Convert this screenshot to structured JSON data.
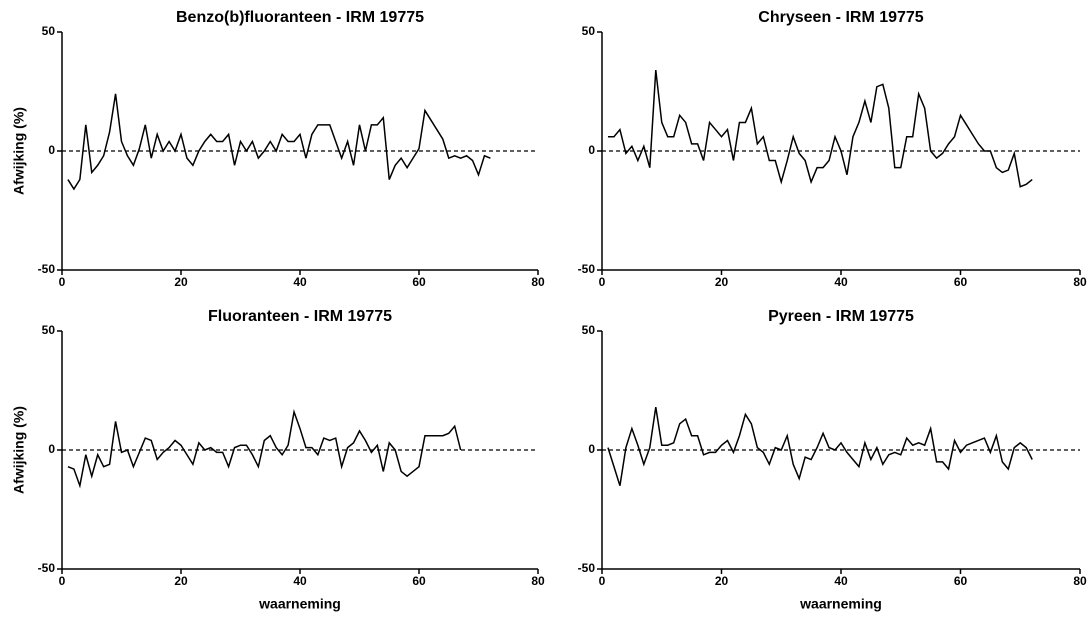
{
  "chart_data": [
    {
      "type": "line",
      "title": "Benzo(b)fluoranteen - IRM 19775",
      "ylabel": "Afwijking (%)",
      "x": [
        1,
        2,
        3,
        4,
        5,
        6,
        7,
        8,
        9,
        10,
        11,
        12,
        13,
        14,
        15,
        16,
        17,
        18,
        19,
        20,
        21,
        22,
        23,
        24,
        25,
        26,
        27,
        28,
        29,
        30,
        31,
        32,
        33,
        34,
        35,
        36,
        37,
        38,
        39,
        40,
        41,
        42,
        43,
        44,
        45,
        46,
        47,
        48,
        49,
        50,
        51,
        52,
        53,
        54,
        55,
        56,
        57,
        58,
        59,
        60,
        61,
        62,
        63,
        64,
        65,
        66,
        67,
        68,
        69,
        70,
        71,
        72
      ],
      "series": [
        {
          "color": "#000000",
          "values": [
            -12,
            -16,
            -12,
            11,
            -9,
            -6,
            -2,
            8,
            24,
            4,
            -2,
            -6,
            1,
            11,
            -3,
            7,
            0,
            4,
            0,
            7,
            -3,
            -6,
            0,
            4,
            7,
            4,
            4,
            7,
            -6,
            4,
            0,
            4,
            -3,
            0,
            4,
            0,
            7,
            4,
            4,
            7,
            -3,
            7,
            11,
            11,
            11,
            4,
            -3,
            4,
            -6,
            11,
            0,
            11,
            11,
            14,
            -12,
            -6,
            -3,
            -7,
            -3,
            1,
            17,
            13,
            9,
            5,
            -3,
            -2,
            -3,
            -2,
            -4,
            -10,
            -2,
            -3
          ]
        }
      ],
      "xlim": [
        0,
        80
      ],
      "ylim": [
        -50,
        50
      ],
      "xticks": [
        0,
        20,
        40,
        60,
        80
      ],
      "yticks": [
        -50,
        0,
        50
      ],
      "reference_line": 0
    },
    {
      "type": "line",
      "title": "Chryseen - IRM 19775",
      "x": [
        1,
        2,
        3,
        4,
        5,
        6,
        7,
        8,
        9,
        10,
        11,
        12,
        13,
        14,
        15,
        16,
        17,
        18,
        19,
        20,
        21,
        22,
        23,
        24,
        25,
        26,
        27,
        28,
        29,
        30,
        31,
        32,
        33,
        34,
        35,
        36,
        37,
        38,
        39,
        40,
        41,
        42,
        43,
        44,
        45,
        46,
        47,
        48,
        49,
        50,
        51,
        52,
        53,
        54,
        55,
        56,
        57,
        58,
        59,
        60,
        61,
        62,
        63,
        64,
        65,
        66,
        67,
        68,
        69,
        70,
        71,
        72
      ],
      "series": [
        {
          "color": "#000000",
          "values": [
            6,
            6,
            9,
            -1,
            2,
            -4,
            2,
            -7,
            34,
            12,
            6,
            6,
            15,
            12,
            3,
            3,
            -4,
            12,
            9,
            6,
            9,
            -4,
            12,
            12,
            18,
            3,
            6,
            -4,
            -4,
            -13,
            -4,
            6,
            -1,
            -4,
            -13,
            -7,
            -7,
            -4,
            6,
            0,
            -10,
            6,
            12,
            21,
            12,
            27,
            28,
            18,
            -7,
            -7,
            6,
            6,
            24,
            18,
            0,
            -3,
            -1,
            3,
            6,
            15,
            11,
            7,
            3,
            0,
            0,
            -7,
            -9,
            -8,
            -1,
            -15,
            -14,
            -12
          ]
        }
      ],
      "xlim": [
        0,
        80
      ],
      "ylim": [
        -50,
        50
      ],
      "xticks": [
        0,
        20,
        40,
        60,
        80
      ],
      "yticks": [
        -50,
        0,
        50
      ],
      "reference_line": 0
    },
    {
      "type": "line",
      "title": "Fluoranteen - IRM 19775",
      "ylabel": "Afwijking (%)",
      "xlabel": "waarneming",
      "x": [
        1,
        2,
        3,
        4,
        5,
        6,
        7,
        8,
        9,
        10,
        11,
        12,
        13,
        14,
        15,
        16,
        17,
        18,
        19,
        20,
        21,
        22,
        23,
        24,
        25,
        26,
        27,
        28,
        29,
        30,
        31,
        32,
        33,
        34,
        35,
        36,
        37,
        38,
        39,
        40,
        41,
        42,
        43,
        44,
        45,
        46,
        47,
        48,
        49,
        50,
        51,
        52,
        53,
        54,
        55,
        56,
        57,
        58,
        59,
        60,
        61,
        62,
        63,
        64,
        65,
        66,
        67
      ],
      "series": [
        {
          "color": "#000000",
          "values": [
            -7,
            -8,
            -15,
            -2,
            -11,
            -2,
            -7,
            -6,
            12,
            -1,
            0,
            -7,
            -1,
            5,
            4,
            -4,
            -1,
            1,
            4,
            2,
            -2,
            -6,
            3,
            0,
            1,
            -1,
            -1,
            -7,
            1,
            2,
            2,
            -2,
            -7,
            4,
            6,
            1,
            -2,
            2,
            16,
            9,
            1,
            1,
            -2,
            5,
            4,
            5,
            -7,
            1,
            3,
            8,
            4,
            -1,
            2,
            -9,
            3,
            0,
            -9,
            -11,
            -9,
            -7,
            6,
            6,
            6,
            6,
            7,
            10,
            0
          ]
        }
      ],
      "xlim": [
        0,
        80
      ],
      "ylim": [
        -50,
        50
      ],
      "xticks": [
        0,
        20,
        40,
        60,
        80
      ],
      "yticks": [
        -50,
        0,
        50
      ],
      "reference_line": 0
    },
    {
      "type": "line",
      "title": "Pyreen - IRM 19775",
      "xlabel": "waarneming",
      "x": [
        1,
        2,
        3,
        4,
        5,
        6,
        7,
        8,
        9,
        10,
        11,
        12,
        13,
        14,
        15,
        16,
        17,
        18,
        19,
        20,
        21,
        22,
        23,
        24,
        25,
        26,
        27,
        28,
        29,
        30,
        31,
        32,
        33,
        34,
        35,
        36,
        37,
        38,
        39,
        40,
        41,
        42,
        43,
        44,
        45,
        46,
        47,
        48,
        49,
        50,
        51,
        52,
        53,
        54,
        55,
        56,
        57,
        58,
        59,
        60,
        61,
        62,
        63,
        64,
        65,
        66,
        67,
        68,
        69,
        70,
        71,
        72
      ],
      "series": [
        {
          "color": "#000000",
          "values": [
            1,
            -7,
            -15,
            1,
            9,
            2,
            -6,
            1,
            18,
            2,
            2,
            3,
            11,
            13,
            6,
            6,
            -2,
            -1,
            -1,
            2,
            4,
            -1,
            6,
            15,
            11,
            1,
            -1,
            -6,
            1,
            0,
            6,
            -6,
            -12,
            -3,
            -4,
            1,
            7,
            1,
            0,
            3,
            -1,
            -4,
            -7,
            3,
            -4,
            1,
            -6,
            -2,
            -1,
            -2,
            5,
            2,
            3,
            2,
            9,
            -5,
            -5,
            -8,
            4,
            -1,
            2,
            3,
            4,
            5,
            -1,
            6,
            -5,
            -8,
            1,
            3,
            1,
            -4
          ]
        }
      ],
      "xlim": [
        0,
        80
      ],
      "ylim": [
        -50,
        50
      ],
      "xticks": [
        0,
        20,
        40,
        60,
        80
      ],
      "yticks": [
        -50,
        0,
        50
      ],
      "reference_line": 0
    }
  ]
}
